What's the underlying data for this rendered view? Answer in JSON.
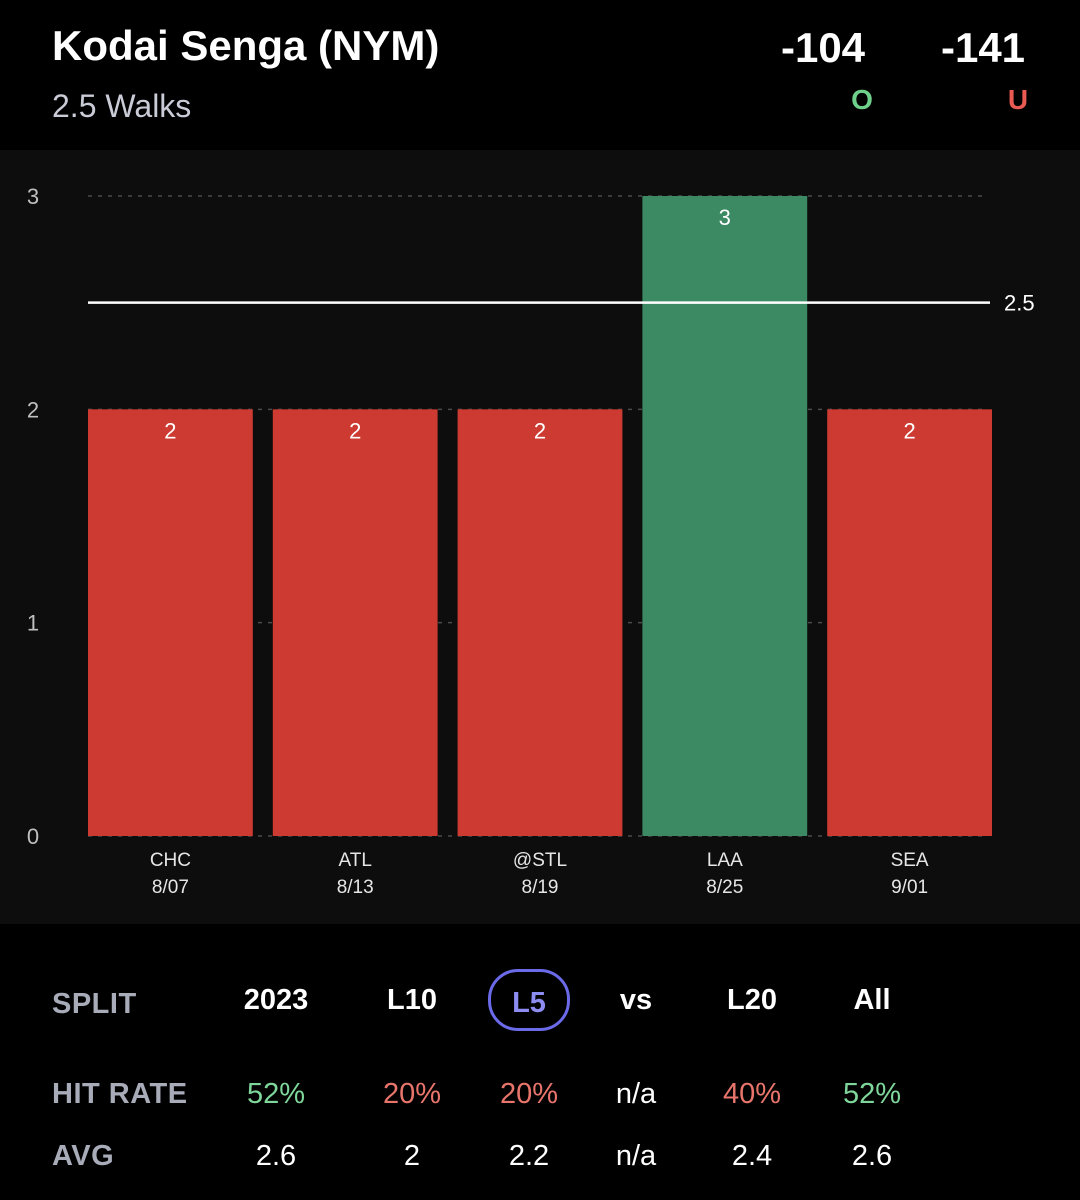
{
  "header": {
    "player": "Kodai Senga (NYM)",
    "prop": "2.5 Walks",
    "over_odds": "-104",
    "under_odds": "-141",
    "over_label": "O",
    "under_label": "U"
  },
  "colors": {
    "over": "#3b8a63",
    "under": "#cc3a31",
    "over_text": "#6fd08c",
    "under_text": "#e85a52",
    "selected": "#6b6ae8"
  },
  "chart_data": {
    "type": "bar",
    "categories": [
      "CHC",
      "ATL",
      "@STL",
      "LAA",
      "SEA"
    ],
    "dates": [
      "8/07",
      "8/13",
      "8/19",
      "8/25",
      "9/01"
    ],
    "values": [
      2,
      2,
      2,
      3,
      2
    ],
    "line": 2.5,
    "line_label": "2.5",
    "ylim": [
      0,
      3
    ],
    "yticks": [
      0,
      1,
      2,
      3
    ],
    "grid": true,
    "title": "",
    "xlabel": "",
    "ylabel": ""
  },
  "splits": {
    "split_label": "SPLIT",
    "hit_rate_label": "HIT RATE",
    "avg_label": "AVG",
    "selected": "L5",
    "columns": [
      {
        "name": "2023",
        "hit_rate": "52%",
        "hit_tone": "green",
        "avg": "2.6"
      },
      {
        "name": "L10",
        "hit_rate": "20%",
        "hit_tone": "red",
        "avg": "2"
      },
      {
        "name": "L5",
        "hit_rate": "20%",
        "hit_tone": "red",
        "avg": "2.2"
      },
      {
        "name": "vs",
        "hit_rate": "n/a",
        "hit_tone": "white",
        "avg": "n/a"
      },
      {
        "name": "L20",
        "hit_rate": "40%",
        "hit_tone": "red",
        "avg": "2.4"
      },
      {
        "name": "All",
        "hit_rate": "52%",
        "hit_tone": "green",
        "avg": "2.6"
      }
    ]
  }
}
